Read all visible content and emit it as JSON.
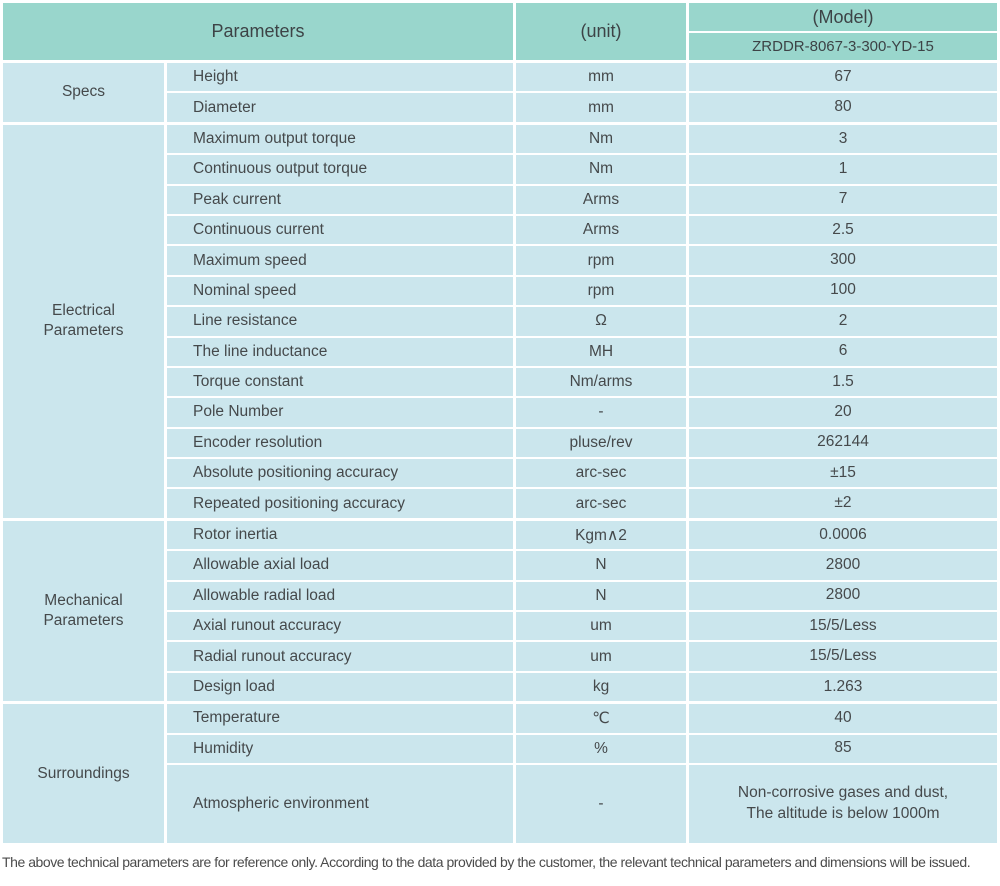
{
  "table": {
    "header": {
      "parameters": "Parameters",
      "unit": "(unit)",
      "model": "(Model)",
      "model_value": "ZRDDR-8067-3-300-YD-15"
    },
    "sections": [
      {
        "label": "Specs",
        "rows": [
          {
            "name": "Height",
            "unit": "mm",
            "value": "67"
          },
          {
            "name": "Diameter",
            "unit": "mm",
            "value": "80"
          }
        ]
      },
      {
        "label": "Electrical Parameters",
        "rows": [
          {
            "name": "Maximum output torque",
            "unit": "Nm",
            "value": "3"
          },
          {
            "name": "Continuous output torque",
            "unit": "Nm",
            "value": "1"
          },
          {
            "name": "Peak current",
            "unit": "Arms",
            "value": "7"
          },
          {
            "name": "Continuous current",
            "unit": "Arms",
            "value": "2.5"
          },
          {
            "name": "Maximum speed",
            "unit": "rpm",
            "value": "300"
          },
          {
            "name": "Nominal speed",
            "unit": "rpm",
            "value": "100"
          },
          {
            "name": "Line resistance",
            "unit": "Ω",
            "value": "2"
          },
          {
            "name": "The line inductance",
            "unit": "MH",
            "value": "6"
          },
          {
            "name": "Torque constant",
            "unit": "Nm/arms",
            "value": "1.5"
          },
          {
            "name": "Pole Number",
            "unit": "-",
            "value": "20"
          },
          {
            "name": "Encoder resolution",
            "unit": "pluse/rev",
            "value": "262144"
          },
          {
            "name": "Absolute positioning accuracy",
            "unit": "arc-sec",
            "value": "±15"
          },
          {
            "name": "Repeated positioning accuracy",
            "unit": "arc-sec",
            "value": "±2"
          }
        ]
      },
      {
        "label": "Mechanical Parameters",
        "rows": [
          {
            "name": "Rotor inertia",
            "unit": "Kgm∧2",
            "value": "0.0006"
          },
          {
            "name": "Allowable axial load",
            "unit": "N",
            "value": "2800"
          },
          {
            "name": "Allowable radial load",
            "unit": "N",
            "value": "2800"
          },
          {
            "name": "Axial runout accuracy",
            "unit": "um",
            "value": "15/5/Less"
          },
          {
            "name": "Radial runout accuracy",
            "unit": "um",
            "value": "15/5/Less"
          },
          {
            "name": "Design load",
            "unit": "kg",
            "value": "1.263"
          }
        ]
      },
      {
        "label": "Surroundings",
        "rows": [
          {
            "name": "Temperature",
            "unit": "℃",
            "value": "40"
          },
          {
            "name": "Humidity",
            "unit": "%",
            "value": "85"
          },
          {
            "name": "Atmospheric environment",
            "unit": "-",
            "value": "Non-corrosive gases and dust,\nThe altitude is below 1000m",
            "tall": true
          }
        ]
      }
    ]
  },
  "footer": {
    "note": "The above technical parameters are for reference only. According to the data provided by the customer, the relevant technical parameters and dimensions will be issued."
  },
  "colors": {
    "header_bg": "#99d6cc",
    "cell_bg": "#cbe6ed",
    "text": "#45494b"
  }
}
